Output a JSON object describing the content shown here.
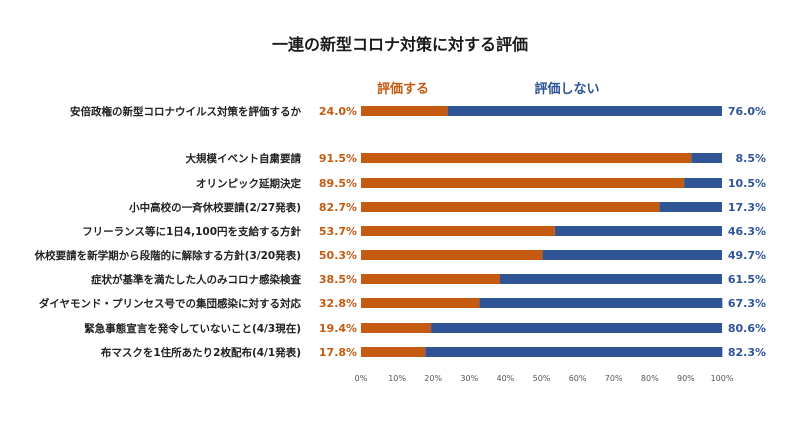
{
  "chart_data": {
    "type": "bar",
    "orientation": "horizontal",
    "stacked": true,
    "title": "一連の新型コロナ対策に対する評価",
    "categories": [
      "安倍政権の新型コロナウイルス対策を評価するか",
      "大規模イベント自粛要請",
      "オリンピック延期決定",
      "小中高校の一斉休校要請(2/27発表)",
      "フリーランス等に1日4,100円を支給する方針",
      "休校要請を新学期から段階的に解除する方針(3/20発表)",
      "症状が基準を満たした人のみコロナ感染検査",
      "ダイヤモンド・プリンセス号での集団感染に対する対応",
      "緊急事態宣言を発令していないこと(4/3現在)",
      "布マスクを1住所あたり2枚配布(4/1発表)"
    ],
    "series": [
      {
        "name": "評価する",
        "color": "#c55a11",
        "values": [
          24.0,
          91.5,
          89.5,
          82.7,
          53.7,
          50.3,
          38.5,
          32.8,
          19.4,
          17.8
        ],
        "labels": [
          "24.0%",
          "91.5%",
          "89.5%",
          "82.7%",
          "53.7%",
          "50.3%",
          "38.5%",
          "32.8%",
          "19.4%",
          "17.8%"
        ]
      },
      {
        "name": "評価しない",
        "color": "#2f5597",
        "values": [
          76.0,
          8.5,
          10.5,
          17.3,
          46.3,
          49.7,
          61.5,
          67.3,
          80.6,
          82.3
        ],
        "labels": [
          "76.0%",
          "8.5%",
          "10.5%",
          "17.3%",
          "46.3%",
          "49.7%",
          "61.5%",
          "67.3%",
          "80.6%",
          "82.3%"
        ]
      }
    ],
    "xlim": [
      0,
      100
    ],
    "xticks": [
      "0%",
      "10%",
      "20%",
      "30%",
      "40%",
      "50%",
      "60%",
      "70%",
      "80%",
      "90%",
      "100%"
    ],
    "legend_position": "top",
    "grid": false
  }
}
